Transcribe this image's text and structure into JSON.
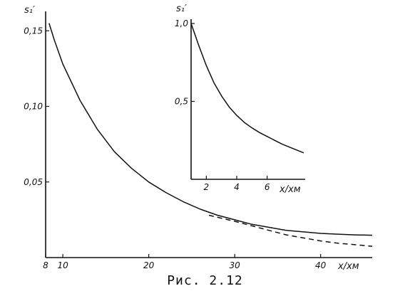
{
  "caption": "Рис. 2.12",
  "chart_data": [
    {
      "type": "line",
      "ylabel": "s₁′",
      "xlabel": "x/xм",
      "xlim": [
        8,
        46
      ],
      "ylim": [
        0,
        0.16
      ],
      "x_ticks": [
        {
          "value": 8,
          "label": "8"
        },
        {
          "value": 10,
          "label": "10"
        },
        {
          "value": 20,
          "label": "20"
        },
        {
          "value": 30,
          "label": "30"
        },
        {
          "value": 40,
          "label": "40"
        }
      ],
      "y_ticks": [
        {
          "value": 0.15,
          "label": "0,15"
        },
        {
          "value": 0.1,
          "label": "0,10"
        },
        {
          "value": 0.05,
          "label": "0,05"
        }
      ],
      "series": [
        {
          "style": "solid",
          "x": [
            8.4,
            9,
            10,
            12,
            14,
            16,
            18,
            20,
            22,
            24,
            26,
            28,
            30,
            32,
            34,
            36,
            38,
            40,
            42,
            44,
            46
          ],
          "y": [
            0.155,
            0.144,
            0.128,
            0.104,
            0.085,
            0.07,
            0.059,
            0.05,
            0.043,
            0.037,
            0.032,
            0.028,
            0.025,
            0.022,
            0.02,
            0.018,
            0.017,
            0.016,
            0.0155,
            0.015,
            0.0148
          ]
        },
        {
          "style": "dashed",
          "x": [
            27,
            30,
            32,
            34,
            36,
            38,
            40,
            42,
            44,
            46
          ],
          "y": [
            0.028,
            0.024,
            0.021,
            0.018,
            0.015,
            0.013,
            0.011,
            0.0095,
            0.0085,
            0.0075
          ]
        }
      ]
    },
    {
      "type": "line",
      "ylabel": "s₁′",
      "xlabel": "x/xм",
      "xlim": [
        1,
        8.5
      ],
      "ylim": [
        0,
        1.0
      ],
      "x_ticks": [
        {
          "value": 2,
          "label": "2"
        },
        {
          "value": 4,
          "label": "4"
        },
        {
          "value": 6,
          "label": "6"
        }
      ],
      "y_ticks": [
        {
          "value": 1.0,
          "label": "1,0"
        },
        {
          "value": 0.5,
          "label": "0,5"
        }
      ],
      "series": [
        {
          "style": "solid",
          "x": [
            1.0,
            1.5,
            2.0,
            2.5,
            3.0,
            3.5,
            4.0,
            4.5,
            5.0,
            5.5,
            6.0,
            6.5,
            7.0,
            7.5,
            8.4
          ],
          "y": [
            1.0,
            0.86,
            0.73,
            0.62,
            0.535,
            0.465,
            0.41,
            0.365,
            0.33,
            0.3,
            0.275,
            0.25,
            0.225,
            0.205,
            0.17
          ]
        }
      ]
    }
  ]
}
